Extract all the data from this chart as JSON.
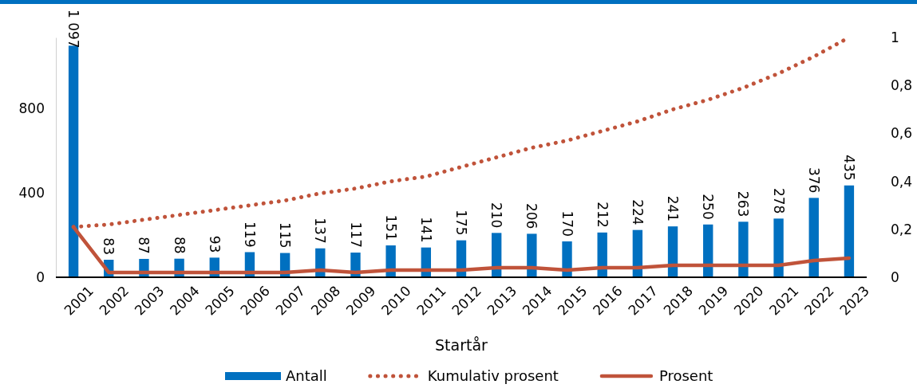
{
  "chart_data": {
    "type": "bar",
    "xlabel": "Startår",
    "categories": [
      "2001",
      "2002",
      "2003",
      "2004",
      "2005",
      "2006",
      "2007",
      "2008",
      "2009",
      "2010",
      "2011",
      "2012",
      "2013",
      "2014",
      "2015",
      "2016",
      "2017",
      "2018",
      "2019",
      "2020",
      "2021",
      "2022",
      "2023"
    ],
    "ylim": [
      0,
      1136
    ],
    "yticks": [
      0,
      400,
      800
    ],
    "y2lim": [
      0,
      1
    ],
    "y2ticks": [
      0,
      {
        "value": 0.2,
        "label": "0,2"
      },
      {
        "value": 0.4,
        "label": "0,4"
      },
      {
        "value": 0.6,
        "label": "0,6"
      },
      {
        "value": 0.8,
        "label": "0,8"
      },
      1
    ],
    "grid": false,
    "legend": "bottom",
    "marker": "none",
    "series": [
      {
        "name": "Antall",
        "color": "#0070c0",
        "values": [
          1097,
          83,
          87,
          88,
          93,
          119,
          115,
          137,
          117,
          151,
          141,
          175,
          210,
          206,
          170,
          212,
          224,
          241,
          250,
          263,
          278,
          376,
          435
        ],
        "value_labels": [
          "1 097",
          "83",
          "87",
          "88",
          "93",
          "119",
          "115",
          "137",
          "117",
          "151",
          "141",
          "175",
          "210",
          "206",
          "170",
          "212",
          "224",
          "241",
          "250",
          "263",
          "278",
          "376",
          "435"
        ]
      },
      {
        "name": "Kumulativ prosent",
        "type": "line",
        "axis": "y2",
        "line_style": "dotted",
        "color": "#c0533a",
        "values": [
          0.21,
          0.22,
          0.24,
          0.26,
          0.28,
          0.3,
          0.32,
          0.35,
          0.37,
          0.4,
          0.42,
          0.46,
          0.5,
          0.54,
          0.57,
          0.61,
          0.65,
          0.7,
          0.74,
          0.79,
          0.85,
          0.92,
          1
        ]
      },
      {
        "name": "Prosent",
        "type": "line",
        "axis": "y2",
        "line_style": "solid",
        "color": "#c0533a",
        "values": [
          0.21,
          0.02,
          0.02,
          0.02,
          0.02,
          0.02,
          0.02,
          0.03,
          0.02,
          0.03,
          0.03,
          0.03,
          0.04,
          0.04,
          0.03,
          0.04,
          0.04,
          0.05,
          0.05,
          0.05,
          0.05,
          0.07,
          0.08
        ]
      }
    ]
  }
}
